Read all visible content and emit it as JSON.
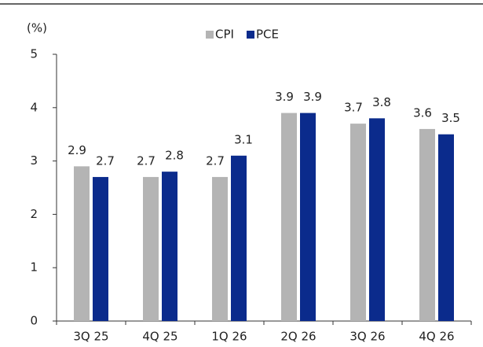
{
  "chart_data": {
    "type": "bar",
    "y_label": "(%)",
    "categories": [
      "3Q 25",
      "4Q 25",
      "1Q 26",
      "2Q 26",
      "3Q 26",
      "4Q 26"
    ],
    "series": [
      {
        "name": "CPI",
        "color": "#b4b4b4",
        "values": [
          2.9,
          2.7,
          2.7,
          3.9,
          3.7,
          3.6
        ]
      },
      {
        "name": "PCE",
        "color": "#0b2b8c",
        "values": [
          2.7,
          2.8,
          3.1,
          3.9,
          3.8,
          3.5
        ]
      }
    ],
    "ylim": [
      0,
      5
    ],
    "yticks": [
      0,
      1,
      2,
      3,
      4,
      5
    ],
    "legend": "top"
  }
}
